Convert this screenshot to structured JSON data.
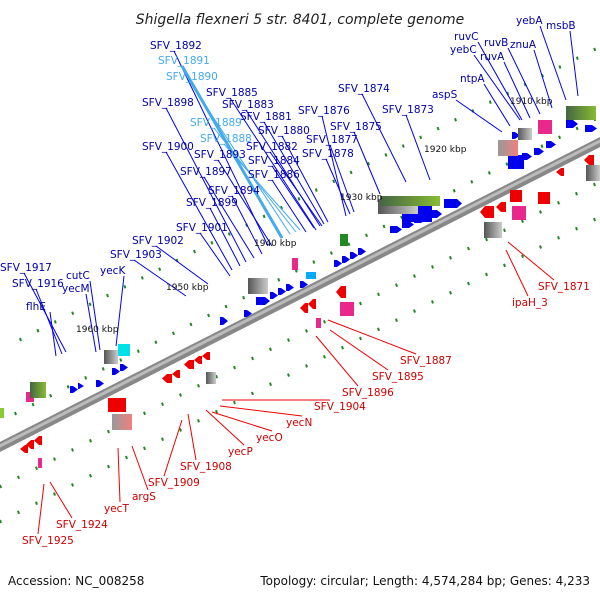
{
  "title": "Shigella flexneri 5 str. 8401, complete genome",
  "footer": {
    "accession": "Accession: NC_008258",
    "summary": "Topology: circular; Length: 4,574,284 bp; Genes: 4,233"
  },
  "colors": {
    "forward": "#0000ee",
    "reverse": "#ee0000",
    "rna": "#44aaee",
    "backbone": "#666666",
    "tick": "#228822"
  },
  "position_labels": [
    "1910 kbp",
    "1920 kbp",
    "1930 kbp",
    "1940 kbp",
    "1950 kbp",
    "1960 kbp"
  ],
  "forward_genes": [
    "SFV_1892",
    "SFV_1891",
    "SFV_1890",
    "SFV_1885",
    "SFV_1898",
    "SFV_1883",
    "SFV_1881",
    "SFV_1889",
    "SFV_1880",
    "SFV_1888",
    "SFV_1882",
    "SFV_1900",
    "SFV_1893",
    "SFV_1884",
    "SFV_1897",
    "SFV_1886",
    "SFV_1894",
    "SFV_1899",
    "SFV_1876",
    "SFV_1877",
    "SFV_1878",
    "SFV_1875",
    "SFV_1874",
    "SFV_1873",
    "aspS",
    "ntpA",
    "ruvC",
    "yebC",
    "ruvB",
    "ruvA",
    "znuA",
    "yebA",
    "msbB",
    "SFV_1901",
    "SFV_1902",
    "SFV_1903",
    "yecK",
    "cutC",
    "yecM",
    "SFV_1917",
    "SFV_1916",
    "flhE"
  ],
  "rna_genes": [
    "SFV_1891",
    "SFV_1890",
    "SFV_1889",
    "SFV_1888"
  ],
  "reverse_genes": [
    "SFV_1871",
    "ipaH_3",
    "SFV_1887",
    "SFV_1895",
    "SFV_1896",
    "SFV_1904",
    "yecN",
    "yecO",
    "yecP",
    "SFV_1908",
    "SFV_1909",
    "argS",
    "yecT",
    "SFV_1924",
    "SFV_1925"
  ]
}
